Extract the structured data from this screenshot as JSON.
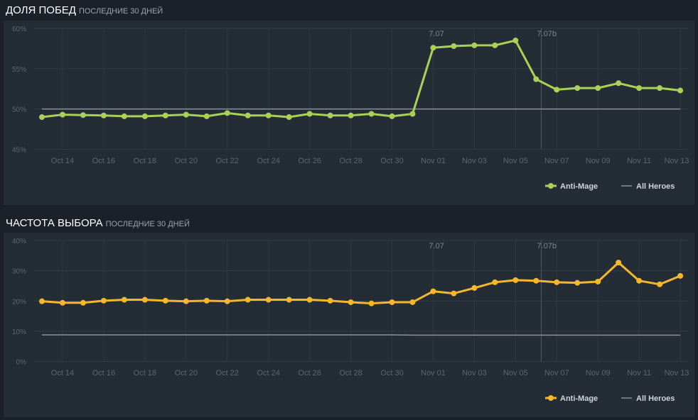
{
  "chart_data": [
    {
      "type": "line",
      "title": "ДОЛЯ ПОБЕД",
      "subtitle": "последние 30 дней",
      "ylim": [
        45,
        60
      ],
      "yticks": [
        "45%",
        "50%",
        "55%",
        "60%"
      ],
      "ytick_values": [
        45,
        50,
        55,
        60
      ],
      "x": [
        "Oct 13",
        "Oct 14",
        "Oct 15",
        "Oct 16",
        "Oct 17",
        "Oct 18",
        "Oct 19",
        "Oct 20",
        "Oct 21",
        "Oct 22",
        "Oct 23",
        "Oct 24",
        "Oct 25",
        "Oct 26",
        "Oct 27",
        "Oct 28",
        "Oct 29",
        "Oct 30",
        "Oct 31",
        "Nov 01",
        "Nov 02",
        "Nov 03",
        "Nov 04",
        "Nov 05",
        "Nov 06",
        "Nov 07",
        "Nov 08",
        "Nov 09",
        "Nov 10",
        "Nov 11",
        "Nov 12",
        "Nov 13"
      ],
      "xticks": [
        "Oct 14",
        "Oct 16",
        "Oct 18",
        "Oct 20",
        "Oct 22",
        "Oct 24",
        "Oct 26",
        "Oct 28",
        "Oct 30",
        "Nov 01",
        "Nov 03",
        "Nov 05",
        "Nov 07",
        "Nov 09",
        "Nov 11",
        "Nov 13"
      ],
      "series": [
        {
          "name": "Anti-Mage",
          "color": "#a9d157",
          "values": [
            49.0,
            49.3,
            49.25,
            49.2,
            49.1,
            49.1,
            49.2,
            49.3,
            49.1,
            49.5,
            49.2,
            49.2,
            49.0,
            49.4,
            49.2,
            49.2,
            49.4,
            49.1,
            49.4,
            57.6,
            57.8,
            57.9,
            57.9,
            58.5,
            53.7,
            52.4,
            52.6,
            52.6,
            53.2,
            52.6,
            52.6,
            52.3
          ]
        },
        {
          "name": "All Heroes",
          "color": "#8a9099",
          "values": [
            50,
            50,
            50,
            50,
            50,
            50,
            50,
            50,
            50,
            50,
            50,
            50,
            50,
            50,
            50,
            50,
            50,
            50,
            50,
            50,
            50,
            50,
            50,
            50,
            50,
            50,
            50,
            50,
            50,
            50,
            50,
            50
          ]
        }
      ],
      "annotations": [
        {
          "label": "7.07",
          "x_index": 19,
          "line": false
        },
        {
          "label": "7.07b",
          "x_index": 24.25,
          "line": true
        }
      ],
      "grid": true,
      "legend": "bottom-right"
    },
    {
      "type": "line",
      "title": "ЧАСТОТА ВЫБОРА",
      "subtitle": "последние 30 дней",
      "ylim": [
        0,
        40
      ],
      "yticks": [
        "0%",
        "10%",
        "20%",
        "30%",
        "40%"
      ],
      "ytick_values": [
        0,
        10,
        20,
        30,
        40
      ],
      "x": [
        "Oct 13",
        "Oct 14",
        "Oct 15",
        "Oct 16",
        "Oct 17",
        "Oct 18",
        "Oct 19",
        "Oct 20",
        "Oct 21",
        "Oct 22",
        "Oct 23",
        "Oct 24",
        "Oct 25",
        "Oct 26",
        "Oct 27",
        "Oct 28",
        "Oct 29",
        "Oct 30",
        "Oct 31",
        "Nov 01",
        "Nov 02",
        "Nov 03",
        "Nov 04",
        "Nov 05",
        "Nov 06",
        "Nov 07",
        "Nov 08",
        "Nov 09",
        "Nov 10",
        "Nov 11",
        "Nov 12",
        "Nov 13"
      ],
      "xticks": [
        "Oct 14",
        "Oct 16",
        "Oct 18",
        "Oct 20",
        "Oct 22",
        "Oct 24",
        "Oct 26",
        "Oct 28",
        "Oct 30",
        "Nov 01",
        "Nov 03",
        "Nov 05",
        "Nov 07",
        "Nov 09",
        "Nov 11",
        "Nov 13"
      ],
      "series": [
        {
          "name": "Anti-Mage",
          "color": "#f5b82a",
          "values": [
            19.9,
            19.4,
            19.4,
            20.1,
            20.4,
            20.4,
            20.1,
            19.9,
            20.1,
            19.9,
            20.4,
            20.4,
            20.4,
            20.4,
            20.1,
            19.6,
            19.2,
            19.6,
            19.6,
            23.2,
            22.5,
            24.3,
            26.2,
            26.9,
            26.7,
            26.2,
            26.0,
            26.4,
            32.7,
            26.7,
            25.5,
            28.3
          ]
        },
        {
          "name": "All Heroes",
          "color": "#8a9099",
          "values": [
            8.8,
            8.8,
            8.8,
            8.8,
            8.8,
            8.8,
            8.8,
            8.8,
            8.8,
            8.8,
            8.8,
            8.8,
            8.8,
            8.8,
            8.8,
            8.8,
            8.8,
            8.8,
            8.7,
            8.7,
            8.7,
            8.7,
            8.7,
            8.7,
            8.7,
            8.7,
            8.7,
            8.7,
            8.7,
            8.7,
            8.7,
            8.7
          ]
        }
      ],
      "annotations": [
        {
          "label": "7.07",
          "x_index": 19,
          "line": false
        },
        {
          "label": "7.07b",
          "x_index": 24.25,
          "line": true
        }
      ],
      "grid": true,
      "legend": "bottom-right"
    }
  ]
}
